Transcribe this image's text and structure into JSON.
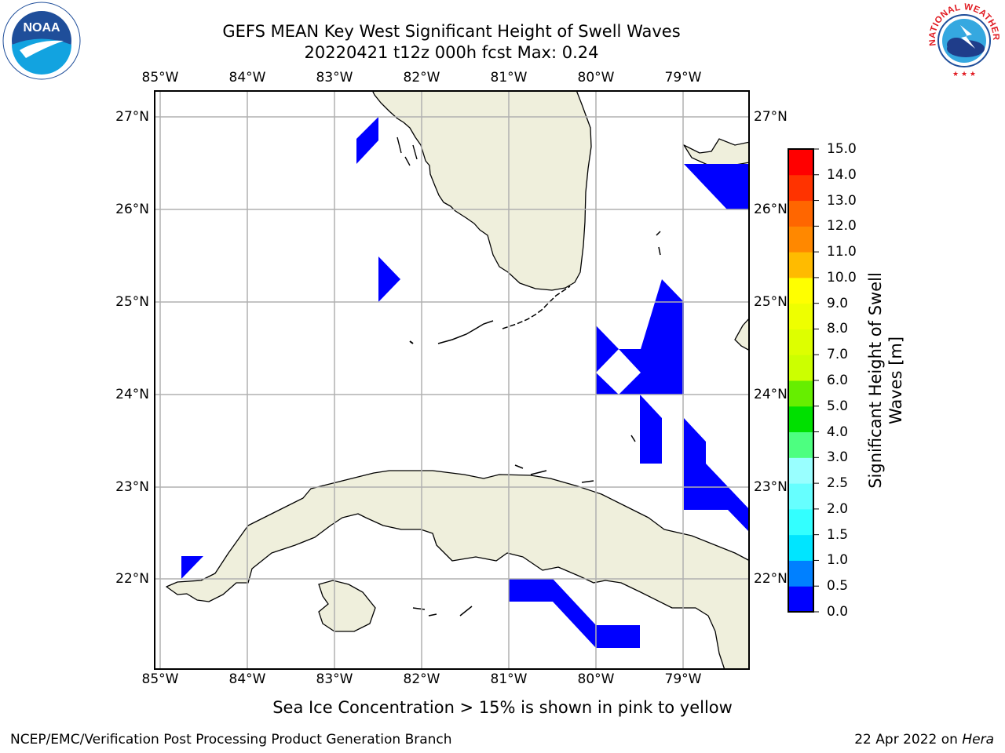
{
  "title": {
    "line1": "GEFS MEAN Key West Significant Height of Swell Waves",
    "line2": "20220421 t12z 000h fcst   Max: 0.24"
  },
  "map": {
    "lon_ticks": [
      "85°W",
      "84°W",
      "83°W",
      "82°W",
      "81°W",
      "80°W",
      "79°W"
    ],
    "lat_ticks": [
      "27°N",
      "26°N",
      "25°N",
      "24°N",
      "23°N",
      "22°N"
    ],
    "lon_range": [
      -85.07,
      -78.27
    ],
    "lat_range": [
      21.05,
      27.3
    ],
    "colors": {
      "land": "#efefdc",
      "grid": "#b0b0b0",
      "swell_0_0.5": "#0000ff"
    }
  },
  "colorbar": {
    "label_line1": "Significant Height of Swell",
    "label_line2": "Waves [m]",
    "ticks": [
      "0.0",
      "0.5",
      "1.0",
      "1.5",
      "2.0",
      "2.5",
      "3.0",
      "4.0",
      "5.0",
      "6.0",
      "7.0",
      "8.0",
      "9.0",
      "10.0",
      "11.0",
      "12.0",
      "13.0",
      "14.0",
      "15.0"
    ],
    "colors": [
      "#0000ff",
      "#0080ff",
      "#00e5ff",
      "#33ffff",
      "#66ffff",
      "#99ffff",
      "#4dff80",
      "#00e000",
      "#66ee00",
      "#ccff00",
      "#ddff00",
      "#eeff00",
      "#ffff00",
      "#ffbb00",
      "#ff8800",
      "#ff6600",
      "#ff3300",
      "#ff0000"
    ]
  },
  "note": "Sea Ice Concentration > 15% is shown in pink to yellow",
  "footer": {
    "left": "NCEP/EMC/Verification Post Processing Product Generation Branch",
    "right_date": "22 Apr 2022 on",
    "right_host": "Hera"
  },
  "logos": {
    "noaa_text": "NOAA",
    "nws_text": "NATIONAL WEATHER SERVICE"
  }
}
